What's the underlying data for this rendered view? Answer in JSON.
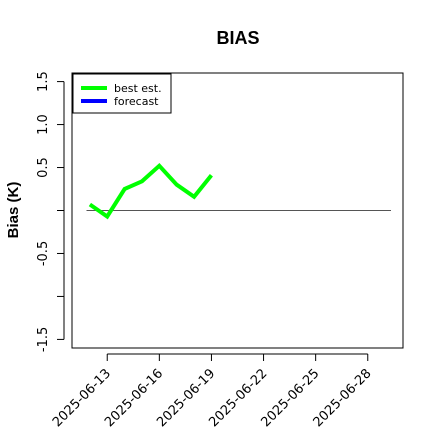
{
  "chart_data": {
    "type": "line",
    "title": "BIAS",
    "ylabel": "Bias (K)",
    "xlabel": "",
    "ylim": [
      -1.6,
      1.6
    ],
    "xlim": [
      "2025-06-11",
      "2025-06-30"
    ],
    "y_ticks": [
      -1.5,
      -1.0,
      -0.5,
      0.0,
      0.5,
      1.0,
      1.5
    ],
    "y_tick_labels": [
      "-1.5",
      "",
      "-0.5",
      "",
      "0.5",
      "1.0",
      "1.5"
    ],
    "x_ticks": [
      "2025-06-13",
      "2025-06-16",
      "2025-06-19",
      "2025-06-22",
      "2025-06-25",
      "2025-06-28"
    ],
    "x_tick_labels": [
      "2025-06-13",
      "2025-06-16",
      "2025-06-19",
      "2025-06-22",
      "2025-06-25",
      "2025-06-28"
    ],
    "highlighted_x_tick": "2025-06-19",
    "highlight_color": "#228B22",
    "zero_line": 0,
    "grid": false,
    "legend_position": "top-left",
    "series": [
      {
        "name": "best est.",
        "color": "#00ff00",
        "x": [
          "2025-06-12",
          "2025-06-13",
          "2025-06-14",
          "2025-06-15",
          "2025-06-16",
          "2025-06-17",
          "2025-06-18",
          "2025-06-19"
        ],
        "values": [
          0.07,
          -0.07,
          0.25,
          0.34,
          0.52,
          0.3,
          0.16,
          0.41
        ]
      },
      {
        "name": "forecast",
        "color": "#0000ff",
        "x": [],
        "values": []
      }
    ]
  }
}
